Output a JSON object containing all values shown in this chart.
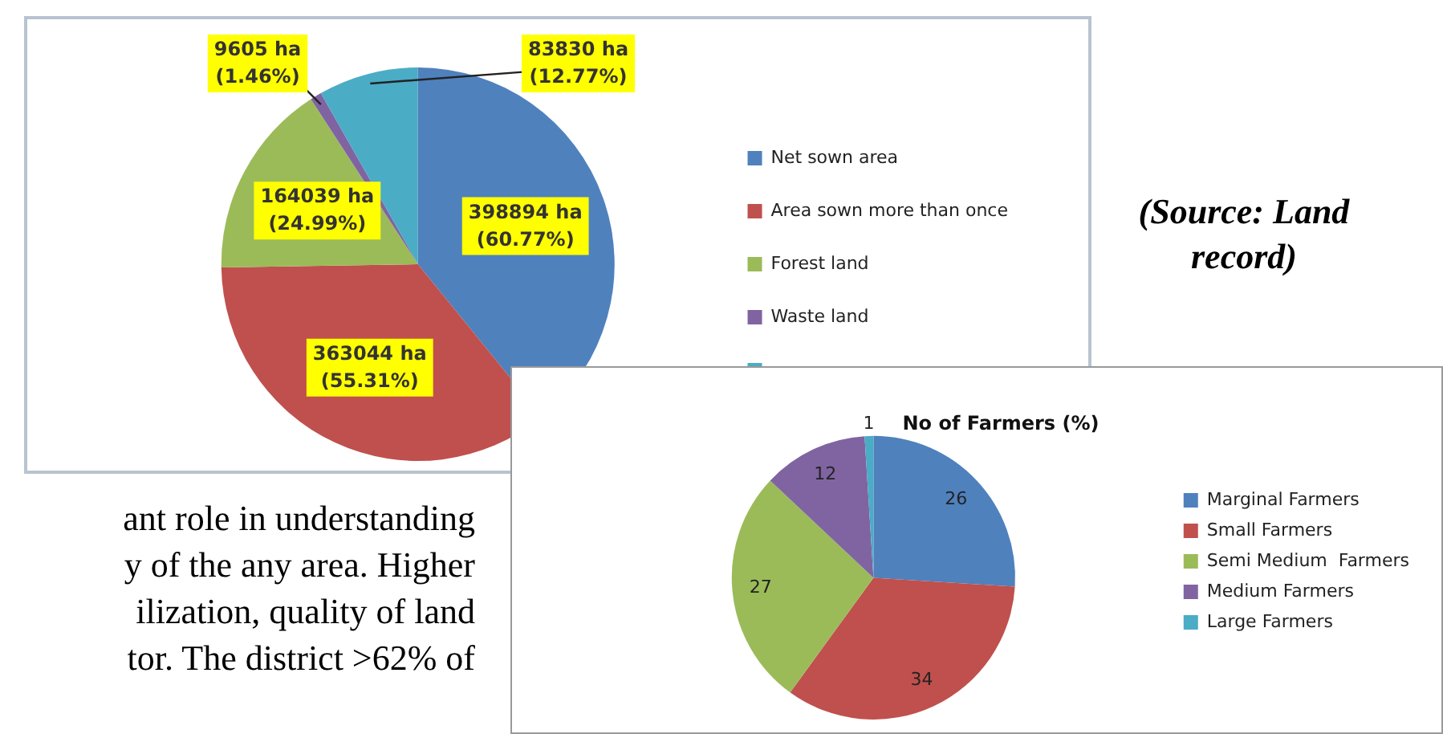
{
  "chart_data": [
    {
      "type": "pie",
      "categories": [
        "Net sown area",
        "Area sown more than once",
        "Forest land",
        "Waste land",
        null
      ],
      "values": [
        398894,
        363044,
        164039,
        9605,
        83830
      ],
      "colors": [
        "#4f81bd",
        "#c0504d",
        "#9bbb59",
        "#8064a2",
        "#4bacc6"
      ],
      "value_labels": [
        "398894 ha (60.77%)",
        "363044 ha (55.31%)",
        "164039 ha (24.99%)",
        "9605 ha (1.46%)",
        "83830 ha (12.77%)"
      ],
      "legend": "right",
      "annotations": [
        "(Source: Land record)",
        "ant role in understanding",
        "y of the any area. Higher",
        "ilization, quality of land",
        "tor. The district >62% of"
      ]
    },
    {
      "type": "pie",
      "title": "No of Farmers (%)",
      "categories": [
        "Marginal Farmers",
        "Small Farmers",
        "Semi Medium  Farmers",
        "Medium Farmers",
        "Large Farmers"
      ],
      "values": [
        26,
        34,
        27,
        12,
        1
      ],
      "colors": [
        "#4f81bd",
        "#c0504d",
        "#9bbb59",
        "#8064a2",
        "#4bacc6"
      ],
      "data_labels": true,
      "legend": "right"
    }
  ]
}
